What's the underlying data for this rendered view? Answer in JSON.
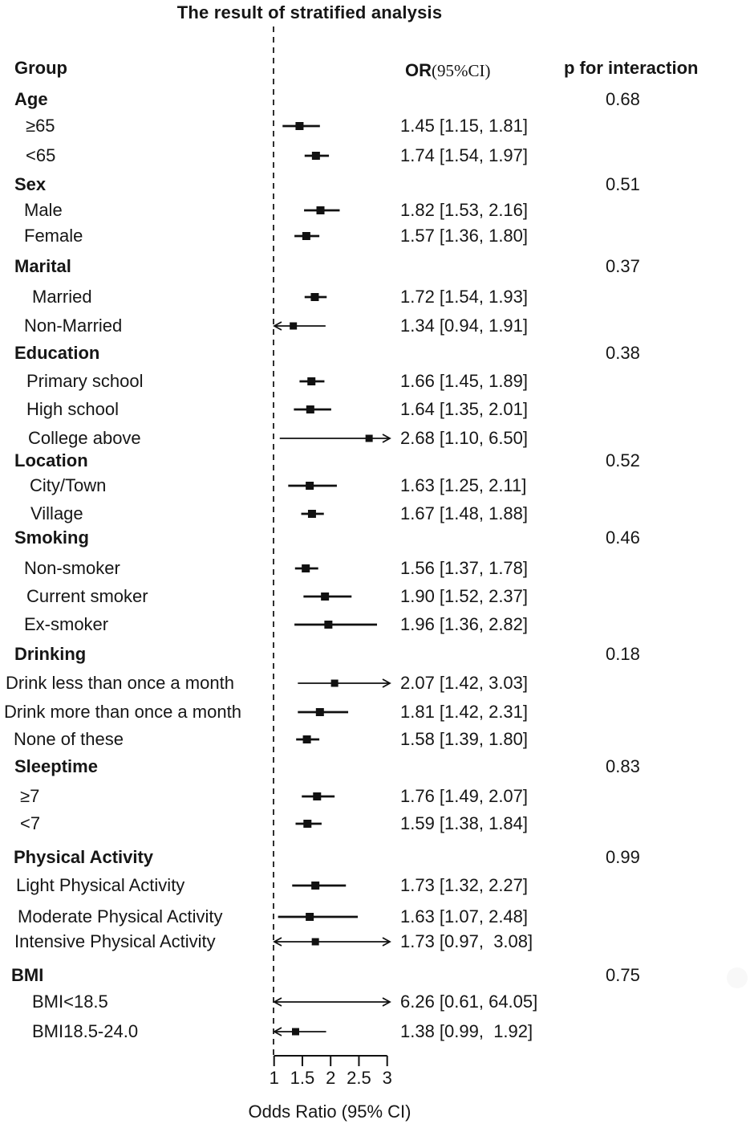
{
  "title": "The result of stratified analysis",
  "header": {
    "group": "Group",
    "or": "OR",
    "or_ci": "(95%CI)",
    "p": "p for interaction"
  },
  "axis": {
    "label": "Odds Ratio (95% CI)",
    "ticks": [
      "1",
      "1.5",
      "2",
      "2.5",
      "3"
    ]
  },
  "colors": {
    "ink": "#161616",
    "marker": "#111111",
    "reference_line": "#2e2e2e",
    "background": "#ffffff",
    "decorative_dot": "#f8f8f8"
  },
  "chart_data": {
    "type": "forest",
    "title": "The result of stratified analysis",
    "xlabel": "Odds Ratio (95% CI)",
    "x_axis": {
      "min": 1,
      "max": 3,
      "tick_values": [
        1,
        1.5,
        2,
        2.5,
        3
      ],
      "reference_line": 1,
      "scale": "linear"
    },
    "or_column_header": "OR(95%CI)",
    "p_column_header": "p for interaction",
    "rows": [
      {
        "kind": "group",
        "label": "Age",
        "p": "0.68"
      },
      {
        "kind": "item",
        "label": "≥65",
        "or": 1.45,
        "lo": 1.15,
        "hi": 1.81,
        "or_text": "1.45 [1.15, 1.81]"
      },
      {
        "kind": "item",
        "label": "<65",
        "or": 1.74,
        "lo": 1.54,
        "hi": 1.97,
        "or_text": "1.74 [1.54, 1.97]"
      },
      {
        "kind": "group",
        "label": "Sex",
        "p": "0.51"
      },
      {
        "kind": "item",
        "label": "Male",
        "or": 1.82,
        "lo": 1.53,
        "hi": 2.16,
        "or_text": "1.82 [1.53, 2.16]"
      },
      {
        "kind": "item",
        "label": "Female",
        "or": 1.57,
        "lo": 1.36,
        "hi": 1.8,
        "or_text": "1.57 [1.36, 1.80]"
      },
      {
        "kind": "group",
        "label": "Marital",
        "p": "0.37"
      },
      {
        "kind": "item",
        "label": "Married",
        "or": 1.72,
        "lo": 1.54,
        "hi": 1.93,
        "or_text": "1.72 [1.54, 1.93]"
      },
      {
        "kind": "item",
        "label": "Non-Married",
        "or": 1.34,
        "lo": 0.94,
        "hi": 1.91,
        "or_text": "1.34 [0.94, 1.91]"
      },
      {
        "kind": "group",
        "label": "Education",
        "p": "0.38"
      },
      {
        "kind": "item",
        "label": "Primary school",
        "or": 1.66,
        "lo": 1.45,
        "hi": 1.89,
        "or_text": "1.66 [1.45, 1.89]"
      },
      {
        "kind": "item",
        "label": "High school",
        "or": 1.64,
        "lo": 1.35,
        "hi": 2.01,
        "or_text": "1.64 [1.35, 2.01]"
      },
      {
        "kind": "item",
        "label": "College above",
        "or": 2.68,
        "lo": 1.1,
        "hi": 6.5,
        "or_text": "2.68 [1.10, 6.50]"
      },
      {
        "kind": "group",
        "label": "Location",
        "p": "0.52"
      },
      {
        "kind": "item",
        "label": "City/Town",
        "or": 1.63,
        "lo": 1.25,
        "hi": 2.11,
        "or_text": "1.63 [1.25, 2.11]"
      },
      {
        "kind": "item",
        "label": "Village",
        "or": 1.67,
        "lo": 1.48,
        "hi": 1.88,
        "or_text": "1.67 [1.48, 1.88]"
      },
      {
        "kind": "group",
        "label": "Smoking",
        "p": "0.46"
      },
      {
        "kind": "item",
        "label": "Non-smoker",
        "or": 1.56,
        "lo": 1.37,
        "hi": 1.78,
        "or_text": "1.56 [1.37, 1.78]"
      },
      {
        "kind": "item",
        "label": "Current smoker",
        "or": 1.9,
        "lo": 1.52,
        "hi": 2.37,
        "or_text": "1.90 [1.52, 2.37]"
      },
      {
        "kind": "item",
        "label": "Ex-smoker",
        "or": 1.96,
        "lo": 1.36,
        "hi": 2.82,
        "or_text": "1.96 [1.36, 2.82]"
      },
      {
        "kind": "group",
        "label": "Drinking",
        "p": "0.18"
      },
      {
        "kind": "item",
        "label": "Drink less than once a month",
        "or": 2.07,
        "lo": 1.42,
        "hi": 3.03,
        "or_text": "2.07 [1.42, 3.03]"
      },
      {
        "kind": "item",
        "label": "Drink more than once a month",
        "or": 1.81,
        "lo": 1.42,
        "hi": 2.31,
        "or_text": "1.81 [1.42, 2.31]"
      },
      {
        "kind": "item",
        "label": "None of these",
        "or": 1.58,
        "lo": 1.39,
        "hi": 1.8,
        "or_text": "1.58 [1.39, 1.80]"
      },
      {
        "kind": "group",
        "label": "Sleeptime",
        "p": "0.83"
      },
      {
        "kind": "item",
        "label": "≥7",
        "or": 1.76,
        "lo": 1.49,
        "hi": 2.07,
        "or_text": "1.76 [1.49, 2.07]"
      },
      {
        "kind": "item",
        "label": "<7",
        "or": 1.59,
        "lo": 1.38,
        "hi": 1.84,
        "or_text": "1.59 [1.38, 1.84]"
      },
      {
        "kind": "group",
        "label": "Physical Activity",
        "p": "0.99"
      },
      {
        "kind": "item",
        "label": "Light Physical Activity",
        "or": 1.73,
        "lo": 1.32,
        "hi": 2.27,
        "or_text": "1.73 [1.32, 2.27]"
      },
      {
        "kind": "item",
        "label": "Moderate Physical Activity",
        "or": 1.63,
        "lo": 1.07,
        "hi": 2.48,
        "or_text": "1.63 [1.07, 2.48]"
      },
      {
        "kind": "item",
        "label": "Intensive Physical Activity",
        "or": 1.73,
        "lo": 0.97,
        "hi": 3.08,
        "or_text": "1.73 [0.97,  3.08]"
      },
      {
        "kind": "group",
        "label": "BMI",
        "p": "0.75"
      },
      {
        "kind": "item",
        "label": "BMI<18.5",
        "or": 6.26,
        "lo": 0.61,
        "hi": 64.05,
        "or_text": "6.26 [0.61, 64.05]"
      },
      {
        "kind": "item",
        "label": "BMI18.5-24.0",
        "or": 1.38,
        "lo": 0.99,
        "hi": 1.92,
        "or_text": "1.38 [0.99,  1.92]"
      }
    ]
  }
}
